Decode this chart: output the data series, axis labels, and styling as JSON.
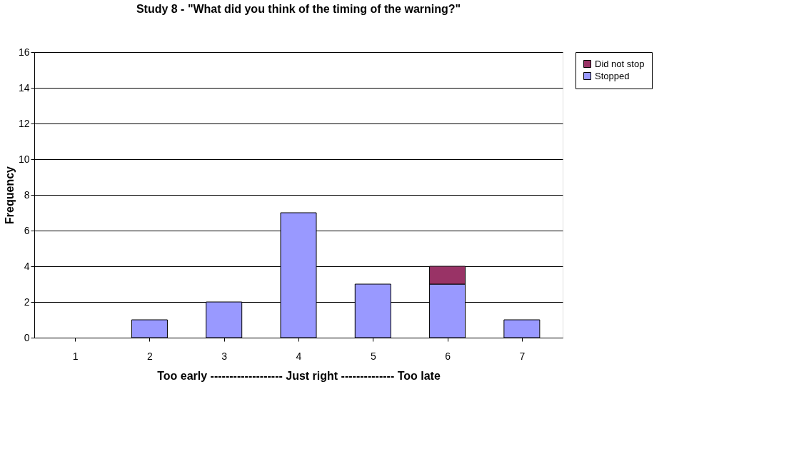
{
  "chart_data": {
    "type": "bar",
    "title": "Study 8 - \"What did you think of the timing of the warning?\"",
    "xlabel": "Too early ------------------- Just right -------------- Too late",
    "ylabel": "Frequency",
    "categories": [
      "1",
      "2",
      "3",
      "4",
      "5",
      "6",
      "7"
    ],
    "series": [
      {
        "name": "Stopped",
        "color": "#9999ff",
        "values": [
          0,
          1,
          2,
          7,
          3,
          3,
          1
        ]
      },
      {
        "name": "Did not stop",
        "color": "#993366",
        "values": [
          0,
          0,
          0,
          0,
          0,
          1,
          0
        ]
      }
    ],
    "stacked": true,
    "ylim": [
      0,
      16
    ],
    "yticks": [
      0,
      2,
      4,
      6,
      8,
      10,
      12,
      14,
      16
    ],
    "grid": "y",
    "legend": "right"
  }
}
